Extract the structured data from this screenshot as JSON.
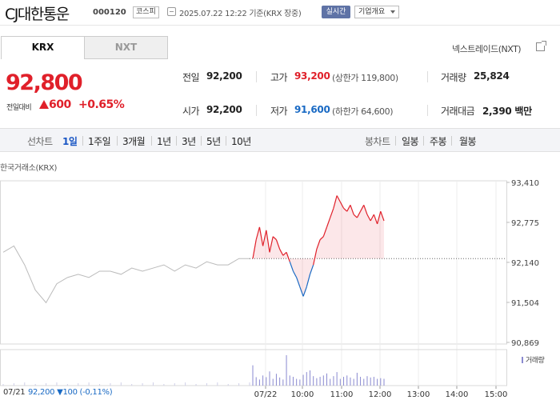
{
  "header": {
    "name": "CJ대한통운",
    "code": "000120",
    "market": "코스피",
    "datetime": "2025.07.22 12:22  기준(KRX 장중)",
    "live": "실시간",
    "company_menu": "기업개요"
  },
  "tabs": {
    "krx": "KRX",
    "nxt": "NXT"
  },
  "nxt_link": "넥스트레이드(NXT)",
  "price": {
    "current": "92,800",
    "change_label": "전일대비",
    "change": "600",
    "change_pct": "+0.65%",
    "direction": "up"
  },
  "stats": {
    "prev_close_label": "전일",
    "prev_close": "92,200",
    "open_label": "시가",
    "open": "92,200",
    "high_label": "고가",
    "high": "93,200",
    "upper_limit": "(상한가 119,800)",
    "low_label": "저가",
    "low": "91,600",
    "lower_limit": "(하한가 64,600)",
    "volume_label": "거래량",
    "volume": "25,824",
    "value_label": "거래대금",
    "value": "2,390 백만"
  },
  "periods": {
    "line_label": "선차트",
    "line": [
      "1일",
      "1주일",
      "3개월",
      "1년",
      "3년",
      "5년",
      "10년"
    ],
    "active": "1일",
    "candle_label": "봉차트",
    "candle": [
      "일봉",
      "주봉",
      "월봉"
    ]
  },
  "exchange_label": "한국거래소(KRX)",
  "volume_legend": "거래량",
  "footer": {
    "prev_date": "07/21",
    "prev_summary": "92,200 ▼100 (-0,11%)"
  },
  "colors": {
    "up": "#e0202a",
    "down": "#1a6ac4",
    "accent": "#1a56c4",
    "live_badge": "#5f73a6"
  },
  "chart_data": {
    "type": "line",
    "y_ticks": [
      "93,410",
      "92,775",
      "92,140",
      "91,504",
      "90,869"
    ],
    "ylim": [
      90869,
      93410
    ],
    "baseline": 92200,
    "x_ticks": [
      "07/22",
      "10:00",
      "11:00",
      "12:00",
      "13:00",
      "14:00",
      "15:00"
    ],
    "series": [
      {
        "values": [
          92200,
          92500,
          92700,
          92400,
          92650,
          92300,
          92550,
          92500,
          92350,
          92250,
          92300,
          92150,
          92000,
          91900,
          91750,
          91600,
          91750,
          91950,
          92100,
          92350,
          92500,
          92550,
          92700,
          92850,
          93000,
          93200,
          93100,
          93000,
          92950,
          93050,
          92900,
          92850,
          92950,
          93050,
          92900,
          92800,
          92900,
          92750,
          92950,
          92800
        ]
      }
    ],
    "prev_day": {
      "values": [
        92300,
        92400,
        92100,
        91700,
        91500,
        91800,
        91900,
        91950,
        91900,
        92000,
        92000,
        91950,
        92050,
        92000,
        92050,
        92100,
        92000,
        92100,
        92050,
        92150,
        92100,
        92100,
        92200,
        92200
      ]
    },
    "volume": [
      600,
      250,
      180,
      300,
      250,
      420,
      200,
      350,
      240,
      180,
      900,
      300,
      260,
      200,
      180,
      320,
      400,
      450,
      280,
      220,
      260,
      300,
      360,
      200,
      280,
      400,
      200,
      260,
      300,
      240,
      200,
      380,
      260,
      200,
      280,
      240,
      260,
      200,
      220,
      200
    ]
  }
}
